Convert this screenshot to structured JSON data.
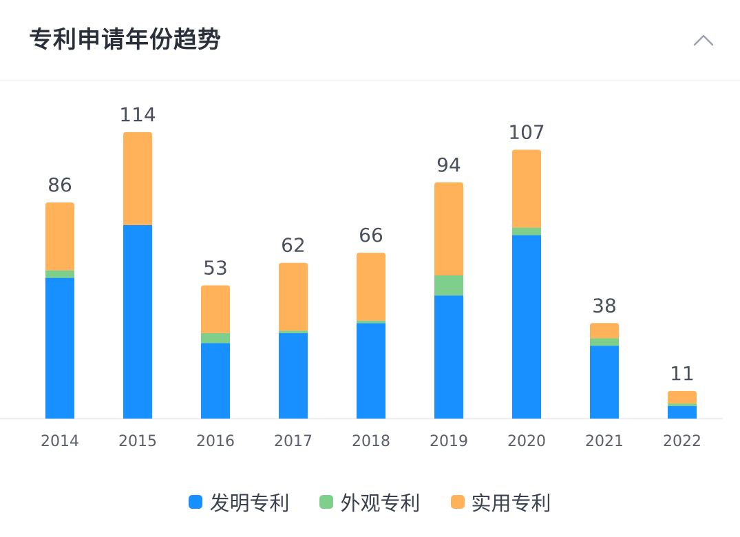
{
  "header": {
    "title": "专利申请年份趋势",
    "collapse_icon": "chevron-up-icon"
  },
  "chart_data": {
    "type": "bar",
    "stacked": true,
    "categories": [
      "2014",
      "2015",
      "2016",
      "2017",
      "2018",
      "2019",
      "2020",
      "2021",
      "2022"
    ],
    "series": [
      {
        "name": "发明专利",
        "color": "#1890ff",
        "values": [
          56,
          77,
          30,
          34,
          38,
          49,
          73,
          29,
          5
        ]
      },
      {
        "name": "外观专利",
        "color": "#7fcf8c",
        "values": [
          3,
          0,
          4,
          1,
          1,
          8,
          3,
          3,
          1
        ]
      },
      {
        "name": "实用专利",
        "color": "#ffb259",
        "values": [
          27,
          37,
          19,
          27,
          27,
          37,
          31,
          6,
          5
        ]
      }
    ],
    "totals": [
      86,
      114,
      53,
      62,
      66,
      94,
      107,
      38,
      11
    ],
    "ylim": [
      0,
      120
    ],
    "legend_position": "bottom-center",
    "grid": false
  }
}
